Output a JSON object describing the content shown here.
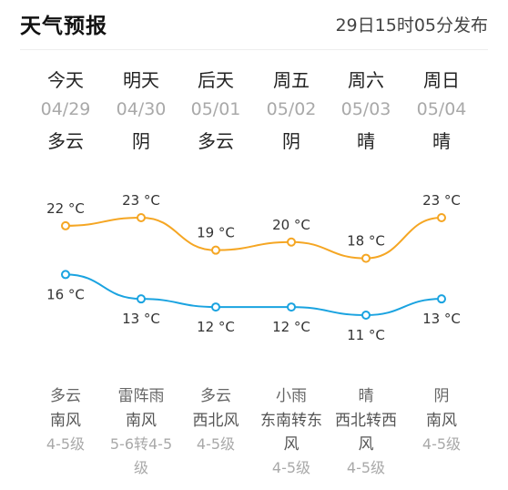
{
  "header": {
    "title": "天气预报",
    "publish_time": "29日15时05分发布"
  },
  "days": [
    {
      "name": "今天",
      "date": "04/29",
      "day_weather": "多云",
      "night_weather": "多云",
      "wind_dir": "南风",
      "wind_level": "4-5级",
      "high": "22 °C",
      "low": "16 °C"
    },
    {
      "name": "明天",
      "date": "04/30",
      "day_weather": "阴",
      "night_weather": "雷阵雨",
      "wind_dir": "南风",
      "wind_level": "5-6转4-5级",
      "high": "23 °C",
      "low": "13 °C"
    },
    {
      "name": "后天",
      "date": "05/01",
      "day_weather": "多云",
      "night_weather": "多云",
      "wind_dir": "西北风",
      "wind_level": "4-5级",
      "high": "19 °C",
      "low": "12 °C"
    },
    {
      "name": "周五",
      "date": "05/02",
      "day_weather": "阴",
      "night_weather": "小雨",
      "wind_dir": "东南转东风",
      "wind_level": "4-5级",
      "high": "20 °C",
      "low": "12 °C"
    },
    {
      "name": "周六",
      "date": "05/03",
      "day_weather": "晴",
      "night_weather": "晴",
      "wind_dir": "西北转西风",
      "wind_level": "4-5级",
      "high": "18 °C",
      "low": "11 °C"
    },
    {
      "name": "周日",
      "date": "05/04",
      "day_weather": "晴",
      "night_weather": "阴",
      "wind_dir": "南风",
      "wind_level": "4-5级",
      "high": "23 °C",
      "low": "13 °C"
    }
  ],
  "chart_data": {
    "type": "line",
    "categories": [
      "今天",
      "明天",
      "后天",
      "周五",
      "周六",
      "周日"
    ],
    "series": [
      {
        "values": [
          22,
          23,
          19,
          20,
          18,
          23
        ],
        "color": "#f5a623"
      },
      {
        "values": [
          16,
          13,
          12,
          12,
          11,
          13
        ],
        "color": "#1aa3e0"
      }
    ]
  }
}
